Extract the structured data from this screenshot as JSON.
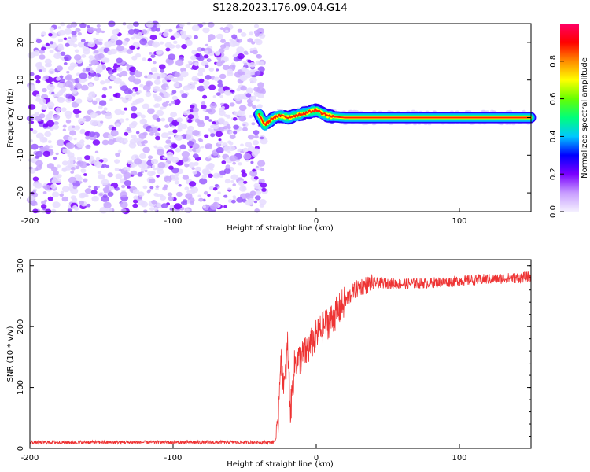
{
  "title": "S128.2023.176.09.04.G14",
  "chart_data": [
    {
      "type": "heatmap",
      "xlabel": "Height of straight line (km)",
      "ylabel": "Frequency (Hz)",
      "xlim": [
        -200,
        150
      ],
      "ylim": [
        -25,
        25
      ],
      "xticks": [
        -200,
        -100,
        0,
        100
      ],
      "yticks": [
        -20,
        -10,
        0,
        10,
        20
      ],
      "colorbar": {
        "label": "Normalized spectral amplitude",
        "range": [
          0,
          1
        ],
        "ticks": [
          0.0,
          0.2,
          0.4,
          0.6,
          0.8
        ],
        "colormap": [
          "#f4f0ff",
          "#c79cff",
          "#7a00ff",
          "#0000ff",
          "#00c8ff",
          "#00ff7a",
          "#66ff00",
          "#ffff00",
          "#ff8c00",
          "#ff0000",
          "#ff0066"
        ]
      },
      "description_values": {
        "noise_region_x": [
          -200,
          -38
        ],
        "noise_amplitude": [
          0.0,
          0.25
        ],
        "signal_region_x": [
          -38,
          150
        ],
        "signal_frequency_track": [
          [
            -42,
            2.5
          ],
          [
            -36,
            -2
          ],
          [
            -30,
            0
          ],
          [
            -25,
            0.5
          ],
          [
            -20,
            0
          ],
          [
            -15,
            0.5
          ],
          [
            -10,
            1
          ],
          [
            -5,
            1.5
          ],
          [
            0,
            2
          ],
          [
            5,
            1
          ],
          [
            10,
            0.3
          ],
          [
            20,
            0
          ],
          [
            50,
            0
          ],
          [
            100,
            0
          ],
          [
            150,
            0
          ]
        ],
        "signal_peak_amplitude": 1.0
      }
    },
    {
      "type": "line",
      "xlabel": "Height of straight line (km)",
      "ylabel": "SNR (10 * v/v)",
      "xlim": [
        -200,
        150
      ],
      "ylim": [
        0,
        310
      ],
      "xticks": [
        -200,
        -100,
        0,
        100
      ],
      "yticks": [
        0,
        100,
        200,
        300
      ],
      "color": "#ee3333",
      "series": [
        {
          "x": [
            -200,
            -150,
            -100,
            -50,
            -30,
            -27,
            -25,
            -22,
            -20,
            -18,
            -15,
            -10,
            -5,
            0,
            5,
            10,
            15,
            20,
            25,
            30,
            40,
            60,
            80,
            100,
            120,
            140,
            150
          ],
          "y": [
            10,
            10,
            10,
            10,
            10,
            20,
            150,
            100,
            170,
            60,
            140,
            150,
            165,
            185,
            200,
            210,
            225,
            240,
            255,
            265,
            272,
            270,
            272,
            275,
            278,
            280,
            282
          ]
        }
      ]
    }
  ]
}
